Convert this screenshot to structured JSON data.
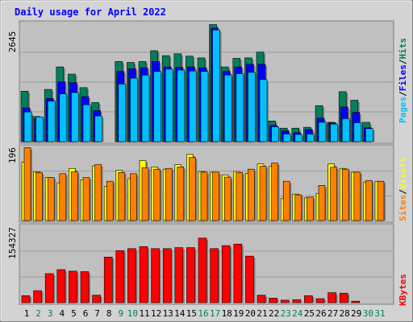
{
  "colors": {
    "hits": "#00805c",
    "files": "#0000ff",
    "pages": "#00c0ff",
    "visits": "#ffff00",
    "sites": "#ff8000",
    "kbytes": "#ff0000",
    "title": "#0000ff",
    "panel_bg": "#c0c0c0",
    "frame_bg": "#d3d3d3"
  },
  "chart_data": {
    "type": "bar",
    "title": "Daily usage for April 2022",
    "categories": [
      "1",
      "2",
      "3",
      "4",
      "5",
      "6",
      "7",
      "8",
      "9",
      "10",
      "11",
      "12",
      "13",
      "14",
      "15",
      "16",
      "17",
      "18",
      "19",
      "20",
      "21",
      "22",
      "23",
      "24",
      "25",
      "26",
      "27",
      "28",
      "29",
      "30",
      "31"
    ],
    "weekend_days": [
      "2",
      "3",
      "9",
      "10",
      "16",
      "17",
      "23",
      "24",
      "30",
      "31"
    ],
    "panels": [
      {
        "id": "requests",
        "ymax": 2645,
        "ymax_label": "2645",
        "legend": [
          "Pages",
          "Files",
          "Hits"
        ],
        "series": [
          {
            "name": "Hits",
            "values": [
              1120,
              560,
              1160,
              1660,
              1500,
              1200,
              870,
              0,
              1780,
              1760,
              1780,
              2020,
              1910,
              1950,
              1900,
              1860,
              2600,
              1660,
              1850,
              1860,
              1990,
              460,
              300,
              300,
              320,
              800,
              430,
              1110,
              920,
              430,
              0
            ]
          },
          {
            "name": "Files",
            "values": [
              750,
              510,
              960,
              1330,
              1310,
              1000,
              690,
              0,
              1560,
              1620,
              1640,
              1780,
              1660,
              1650,
              1660,
              1640,
              2520,
              1560,
              1660,
              1720,
              1720,
              360,
              240,
              200,
              270,
              520,
              420,
              770,
              650,
              310,
              0
            ]
          },
          {
            "name": "Pages",
            "values": [
              660,
              550,
              900,
              1060,
              1090,
              820,
              570,
              0,
              1280,
              1410,
              1480,
              1560,
              1610,
              1590,
              1570,
              1560,
              2480,
              1480,
              1510,
              1540,
              1380,
              330,
              170,
              160,
              170,
              430,
              390,
              510,
              420,
              290,
              0
            ]
          }
        ]
      },
      {
        "id": "visitors",
        "ymax": 196,
        "ymax_label": "196",
        "legend": [
          "Sites",
          "Visits"
        ],
        "series": [
          {
            "name": "Visits",
            "values": [
              155,
              129,
              114,
              100,
              138,
              108,
              145,
              90,
              133,
              111,
              159,
              142,
              136,
              148,
              175,
              130,
              128,
              121,
              130,
              125,
              150,
              144,
              58,
              70,
              60,
              72,
              150,
              138,
              128,
              102,
              104
            ]
          },
          {
            "name": "Sites",
            "values": [
              193,
              127,
              114,
              124,
              129,
              114,
              148,
              104,
              127,
              124,
              140,
              136,
              138,
              142,
              167,
              128,
              128,
              115,
              127,
              136,
              144,
              152,
              104,
              68,
              62,
              93,
              141,
              136,
              128,
              106,
              104
            ]
          }
        ]
      },
      {
        "id": "kbytes",
        "ymax": 154327,
        "ymax_label": "154327",
        "legend": [
          "KBytes"
        ],
        "series": [
          {
            "name": "KBytes",
            "values": [
              14000,
              24000,
              58000,
              66000,
              63000,
              62000,
              15000,
              91000,
              104000,
              108000,
              112000,
              108000,
              108000,
              110000,
              110000,
              129000,
              108000,
              114000,
              117000,
              93000,
              15000,
              9000,
              5000,
              6000,
              14000,
              8000,
              20000,
              19000,
              3000,
              0,
              0
            ]
          }
        ]
      }
    ]
  }
}
